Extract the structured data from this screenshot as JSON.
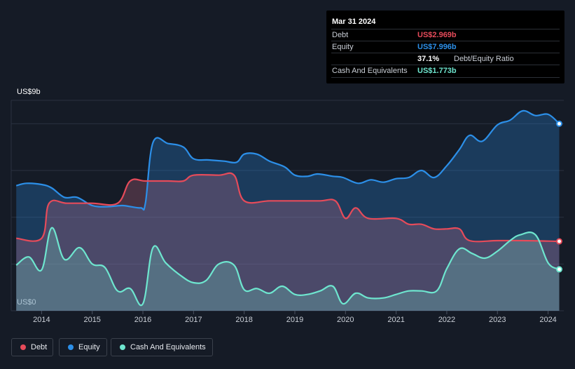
{
  "tooltip": {
    "date": "Mar 31 2024",
    "debt_label": "Debt",
    "debt_value": "US$2.969b",
    "equity_label": "Equity",
    "equity_value": "US$7.996b",
    "ratio_value": "37.1%",
    "ratio_label": "Debt/Equity Ratio",
    "cash_label": "Cash And Equivalents",
    "cash_value": "US$1.773b"
  },
  "legend": {
    "debt": "Debt",
    "equity": "Equity",
    "cash": "Cash And Equivalents"
  },
  "colors": {
    "debt": "#e64b5a",
    "equity": "#2c8fe8",
    "cash": "#6ee6cf",
    "background": "#151b26"
  },
  "chart_data": {
    "type": "area",
    "ytop_label": "US$9b",
    "ybottom_label": "US$0",
    "ylim": [
      0,
      9
    ],
    "x_ticks": [
      "2014",
      "2015",
      "2016",
      "2017",
      "2018",
      "2019",
      "2020",
      "2021",
      "2022",
      "2023",
      "2024"
    ],
    "series": [
      {
        "name": "Equity",
        "points": [
          [
            2013.5,
            5.35
          ],
          [
            2013.7,
            5.45
          ],
          [
            2014.0,
            5.4
          ],
          [
            2014.2,
            5.25
          ],
          [
            2014.45,
            4.85
          ],
          [
            2014.7,
            4.85
          ],
          [
            2015.0,
            4.5
          ],
          [
            2015.3,
            4.45
          ],
          [
            2015.6,
            4.5
          ],
          [
            2015.95,
            4.4
          ],
          [
            2016.05,
            4.6
          ],
          [
            2016.2,
            7.2
          ],
          [
            2016.5,
            7.15
          ],
          [
            2016.8,
            7.0
          ],
          [
            2017.0,
            6.5
          ],
          [
            2017.3,
            6.45
          ],
          [
            2017.6,
            6.4
          ],
          [
            2017.85,
            6.35
          ],
          [
            2018.0,
            6.7
          ],
          [
            2018.25,
            6.7
          ],
          [
            2018.5,
            6.4
          ],
          [
            2018.8,
            6.15
          ],
          [
            2019.0,
            5.8
          ],
          [
            2019.25,
            5.75
          ],
          [
            2019.45,
            5.85
          ],
          [
            2019.75,
            5.75
          ],
          [
            2019.95,
            5.7
          ],
          [
            2020.25,
            5.45
          ],
          [
            2020.5,
            5.6
          ],
          [
            2020.75,
            5.5
          ],
          [
            2021.0,
            5.65
          ],
          [
            2021.25,
            5.7
          ],
          [
            2021.5,
            6.0
          ],
          [
            2021.75,
            5.7
          ],
          [
            2022.0,
            6.2
          ],
          [
            2022.25,
            6.9
          ],
          [
            2022.45,
            7.5
          ],
          [
            2022.7,
            7.25
          ],
          [
            2023.0,
            7.95
          ],
          [
            2023.25,
            8.15
          ],
          [
            2023.5,
            8.55
          ],
          [
            2023.75,
            8.35
          ],
          [
            2024.0,
            8.4
          ],
          [
            2024.22,
            8.0
          ]
        ]
      },
      {
        "name": "Debt",
        "points": [
          [
            2013.5,
            3.1
          ],
          [
            2014.0,
            3.1
          ],
          [
            2014.15,
            4.6
          ],
          [
            2014.5,
            4.6
          ],
          [
            2015.0,
            4.6
          ],
          [
            2015.5,
            4.6
          ],
          [
            2015.75,
            5.55
          ],
          [
            2016.05,
            5.55
          ],
          [
            2016.5,
            5.55
          ],
          [
            2016.8,
            5.55
          ],
          [
            2017.0,
            5.8
          ],
          [
            2017.5,
            5.8
          ],
          [
            2017.8,
            5.8
          ],
          [
            2018.0,
            4.7
          ],
          [
            2018.5,
            4.7
          ],
          [
            2019.0,
            4.7
          ],
          [
            2019.5,
            4.7
          ],
          [
            2019.8,
            4.7
          ],
          [
            2020.0,
            3.95
          ],
          [
            2020.2,
            4.4
          ],
          [
            2020.45,
            3.95
          ],
          [
            2021.0,
            3.95
          ],
          [
            2021.25,
            3.7
          ],
          [
            2021.5,
            3.7
          ],
          [
            2021.75,
            3.5
          ],
          [
            2022.0,
            3.5
          ],
          [
            2022.25,
            3.5
          ],
          [
            2022.45,
            3.0
          ],
          [
            2023.0,
            3.0
          ],
          [
            2023.5,
            3.0
          ],
          [
            2024.0,
            2.98
          ],
          [
            2024.22,
            2.969
          ]
        ]
      },
      {
        "name": "Cash And Equivalents",
        "points": [
          [
            2013.5,
            1.95
          ],
          [
            2013.75,
            2.3
          ],
          [
            2014.0,
            1.75
          ],
          [
            2014.2,
            3.55
          ],
          [
            2014.45,
            2.2
          ],
          [
            2014.75,
            2.7
          ],
          [
            2015.0,
            2.0
          ],
          [
            2015.25,
            1.85
          ],
          [
            2015.5,
            0.85
          ],
          [
            2015.75,
            0.95
          ],
          [
            2016.0,
            0.3
          ],
          [
            2016.2,
            2.7
          ],
          [
            2016.45,
            2.05
          ],
          [
            2016.75,
            1.5
          ],
          [
            2017.0,
            1.2
          ],
          [
            2017.25,
            1.3
          ],
          [
            2017.5,
            2.0
          ],
          [
            2017.8,
            1.95
          ],
          [
            2018.0,
            0.9
          ],
          [
            2018.25,
            0.95
          ],
          [
            2018.5,
            0.75
          ],
          [
            2018.75,
            1.05
          ],
          [
            2019.0,
            0.7
          ],
          [
            2019.25,
            0.7
          ],
          [
            2019.5,
            0.85
          ],
          [
            2019.75,
            1.05
          ],
          [
            2019.95,
            0.3
          ],
          [
            2020.2,
            0.75
          ],
          [
            2020.45,
            0.55
          ],
          [
            2020.75,
            0.55
          ],
          [
            2021.0,
            0.7
          ],
          [
            2021.25,
            0.85
          ],
          [
            2021.5,
            0.85
          ],
          [
            2021.8,
            0.85
          ],
          [
            2022.0,
            1.8
          ],
          [
            2022.25,
            2.65
          ],
          [
            2022.5,
            2.45
          ],
          [
            2022.75,
            2.25
          ],
          [
            2023.0,
            2.55
          ],
          [
            2023.25,
            3.0
          ],
          [
            2023.45,
            3.25
          ],
          [
            2023.75,
            3.25
          ],
          [
            2024.0,
            2.05
          ],
          [
            2024.22,
            1.773
          ]
        ]
      }
    ]
  }
}
